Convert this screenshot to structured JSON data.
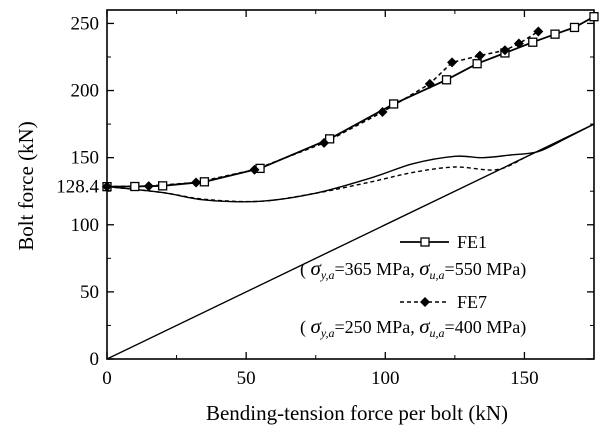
{
  "chart_data": {
    "type": "line",
    "xlabel": "Bending-tension force per bolt (kN)",
    "ylabel": "Bolt force (kN)",
    "xlim": [
      0,
      175
    ],
    "ylim": [
      0,
      260
    ],
    "x_ticks": [
      0,
      50,
      100,
      150
    ],
    "y_ticks": [
      0,
      50,
      100,
      150,
      200,
      250
    ],
    "extra_y_tick": {
      "value": 128.4,
      "label": "128.4"
    },
    "grid": false,
    "legend_position": "bottom-right",
    "series": [
      {
        "name": "FE1",
        "style": "solid-open-square",
        "color": "#000000",
        "x": [
          0,
          10,
          20,
          35,
          55,
          80,
          103,
          122,
          133,
          143,
          153,
          161,
          168,
          175
        ],
        "y": [
          128.4,
          128.5,
          129.0,
          132.0,
          142.0,
          164.0,
          190.0,
          208.0,
          220.0,
          228.0,
          236.0,
          242.0,
          247.0,
          255.0
        ]
      },
      {
        "name": "FE7",
        "style": "dashed-filled-diamond",
        "color": "#000000",
        "x": [
          0,
          15,
          32,
          53,
          78,
          99,
          116,
          124,
          134,
          143,
          148,
          155
        ],
        "y": [
          128.4,
          128.8,
          131.5,
          141.0,
          161.0,
          184.0,
          205.0,
          221.0,
          226.0,
          230.0,
          235.0,
          244.0
        ]
      }
    ],
    "unlabeled_curves": [
      {
        "style": "solid",
        "x": [
          0,
          20,
          35,
          55,
          75,
          95,
          110,
          125,
          135,
          145,
          155,
          165,
          175
        ],
        "y": [
          128.4,
          124.0,
          118.5,
          117.5,
          123.5,
          135.0,
          145.5,
          151.0,
          150.0,
          152.0,
          154.5,
          164.5,
          175.0
        ]
      },
      {
        "style": "dashed",
        "x": [
          0,
          20,
          35,
          55,
          75,
          95,
          110,
          125,
          140,
          150
        ],
        "y": [
          128.4,
          124.0,
          119.0,
          117.5,
          123.5,
          132.0,
          139.0,
          143.0,
          141.0,
          150.0
        ]
      },
      {
        "style": "solid-reference",
        "x": [
          0,
          175
        ],
        "y": [
          0,
          175
        ]
      }
    ],
    "legend": [
      {
        "series": "FE1",
        "label": "FE1",
        "note_prefix": "(",
        "sigma_y_sub": "y,a",
        "sigma_y_val": "=365 MPa, ",
        "sigma_u_sub": "u,a",
        "sigma_u_val": "=550 MPa)"
      },
      {
        "series": "FE7",
        "label": "FE7",
        "note_prefix": "(",
        "sigma_y_sub": "y,a",
        "sigma_y_val": "=250 MPa, ",
        "sigma_u_sub": "u,a",
        "sigma_u_val": "=400 MPa)"
      }
    ],
    "sigma_symbol": "σ"
  }
}
